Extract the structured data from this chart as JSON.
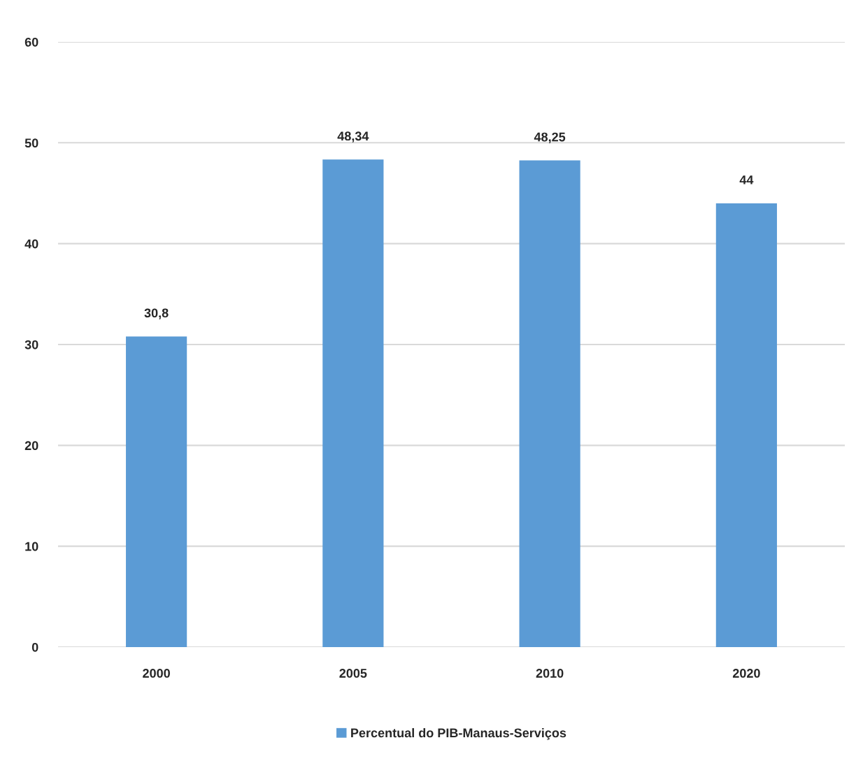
{
  "chart_data": {
    "type": "bar",
    "categories": [
      "2000",
      "2005",
      "2010",
      "2020"
    ],
    "series": [
      {
        "name": "Percentual do PIB-Manaus-Serviços",
        "color": "#5b9bd5",
        "values": [
          30.8,
          48.34,
          48.25,
          44
        ],
        "value_labels": [
          "30,8",
          "48,34",
          "48,25",
          "44"
        ]
      }
    ],
    "ylim": [
      0,
      60
    ],
    "yticks": [
      0,
      10,
      20,
      30,
      40,
      50,
      60
    ],
    "grid": "y",
    "legend": "bottom"
  }
}
